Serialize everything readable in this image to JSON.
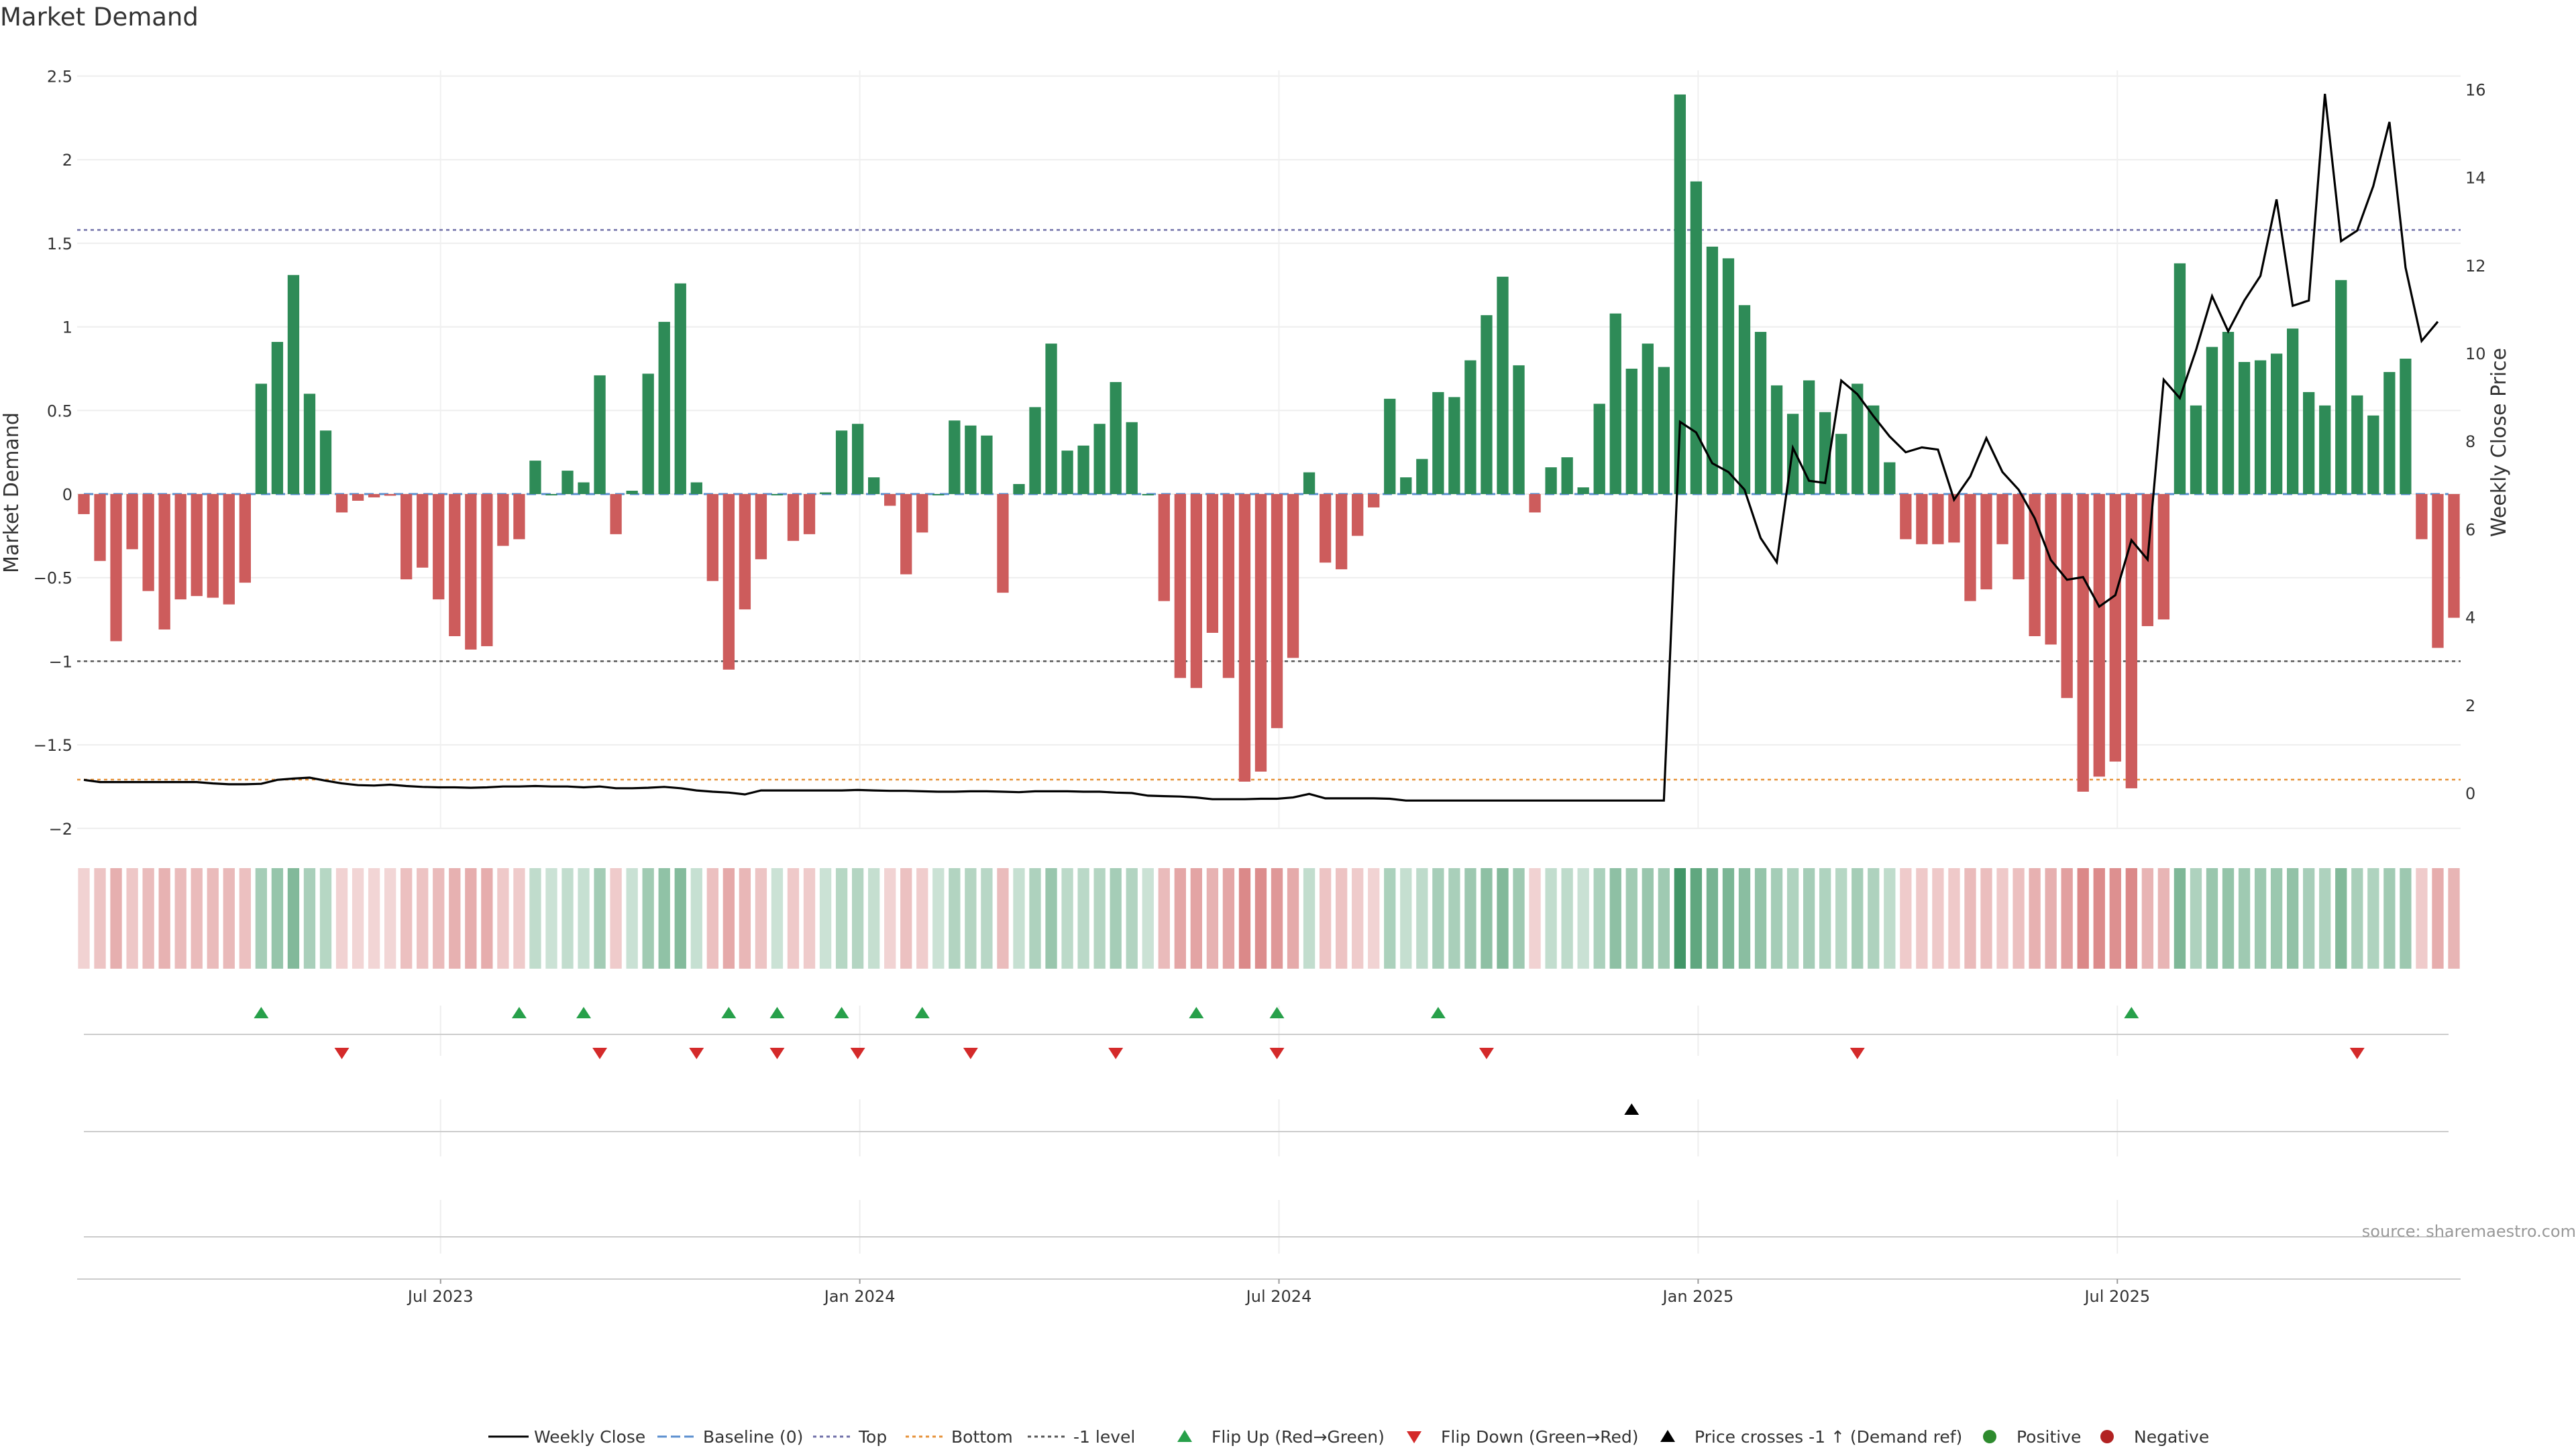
{
  "chart_data": {
    "type": "bar",
    "title": "Market Demand",
    "ylabel": "Market Demand",
    "y2label": "Weekly Close Price",
    "ylim": [
      -2,
      2.5
    ],
    "y2lim": [
      0,
      16
    ],
    "yticks": [
      "2.5",
      "2",
      "1.5",
      "1",
      "0.5",
      "0",
      "−0.5",
      "−1",
      "−1.5",
      "−2"
    ],
    "y2ticks": [
      "16",
      "14",
      "12",
      "10",
      "8",
      "6",
      "4",
      "2",
      "0"
    ],
    "xticks": [
      "Jul 2023",
      "Jan 2024",
      "Jul 2024",
      "Jan 2025",
      "Jul 2025"
    ],
    "levels": {
      "top": 1.58,
      "bottom": -1.7,
      "minus_one": -1,
      "baseline": 0
    },
    "grid": true,
    "legend_position": "bottom-center",
    "source": "source: sharemaestro.com",
    "colors": {
      "positive": "#2e8b57",
      "negative": "#cd5c5c",
      "line": "#000000",
      "flip_up": "#27a04a",
      "flip_down": "#d42a2a",
      "top": "#6f6fa8",
      "bottom": "#e69138",
      "baseline": "#5b8fcf",
      "minus_one": "#555555"
    },
    "demand": [
      -0.12,
      -0.4,
      -0.88,
      -0.33,
      -0.58,
      -0.81,
      -0.63,
      -0.61,
      -0.62,
      -0.66,
      -0.53,
      0.66,
      0.91,
      1.31,
      0.6,
      0.38,
      -0.11,
      -0.04,
      -0.02,
      -0.01,
      -0.51,
      -0.44,
      -0.63,
      -0.85,
      -0.93,
      -0.91,
      -0.31,
      -0.27,
      0.2,
      0.0,
      0.14,
      0.07,
      0.71,
      -0.24,
      0.02,
      0.72,
      1.03,
      1.26,
      0.07,
      -0.52,
      -1.05,
      -0.69,
      -0.39,
      0.0,
      -0.28,
      -0.24,
      0.01,
      0.38,
      0.42,
      0.1,
      -0.07,
      -0.48,
      -0.23,
      0.0,
      0.44,
      0.41,
      0.35,
      -0.59,
      0.06,
      0.52,
      0.9,
      0.26,
      0.29,
      0.42,
      0.67,
      0.43,
      0.0,
      -0.64,
      -1.1,
      -1.16,
      -0.83,
      -1.1,
      -1.72,
      -1.66,
      -1.4,
      -0.98,
      0.13,
      -0.41,
      -0.45,
      -0.25,
      -0.08,
      0.57,
      0.1,
      0.21,
      0.61,
      0.58,
      0.8,
      1.07,
      1.3,
      0.77,
      -0.11,
      0.16,
      0.22,
      0.04,
      0.54,
      1.08,
      0.75,
      0.9,
      0.76,
      2.39,
      1.87,
      1.48,
      1.41,
      1.13,
      0.97,
      0.65,
      0.48,
      0.68,
      0.49,
      0.36,
      0.66,
      0.53,
      0.19,
      -0.27,
      -0.3,
      -0.3,
      -0.29,
      -0.64,
      -0.57,
      -0.3,
      -0.51,
      -0.85,
      -0.9,
      -1.22,
      -1.78,
      -1.69,
      -1.6,
      -1.76,
      -0.79,
      -0.75,
      1.38,
      0.53,
      0.88,
      0.97,
      0.79,
      0.8,
      0.84,
      0.99,
      0.61,
      0.53,
      1.28,
      0.59,
      0.47,
      0.73,
      0.81,
      -0.27,
      -0.92,
      -0.74
    ],
    "close": [
      0.3,
      0.25,
      0.25,
      0.25,
      0.25,
      0.25,
      0.25,
      0.25,
      0.22,
      0.2,
      0.2,
      0.21,
      0.3,
      0.33,
      0.35,
      0.28,
      0.22,
      0.18,
      0.17,
      0.19,
      0.16,
      0.14,
      0.13,
      0.13,
      0.12,
      0.13,
      0.15,
      0.15,
      0.16,
      0.15,
      0.15,
      0.13,
      0.15,
      0.11,
      0.11,
      0.12,
      0.14,
      0.11,
      0.06,
      0.03,
      0.01,
      -0.03,
      0.06,
      0.06,
      0.06,
      0.06,
      0.06,
      0.06,
      0.07,
      0.06,
      0.05,
      0.05,
      0.04,
      0.03,
      0.03,
      0.04,
      0.04,
      0.03,
      0.02,
      0.04,
      0.04,
      0.04,
      0.03,
      0.03,
      0.01,
      0.0,
      -0.06,
      -0.07,
      -0.08,
      -0.1,
      -0.14,
      -0.14,
      -0.14,
      -0.13,
      -0.13,
      -0.1,
      -0.02,
      -0.12,
      -0.12,
      -0.12,
      -0.12,
      -0.13,
      -0.17,
      -0.17,
      -0.17,
      -0.17,
      -0.17,
      -0.17,
      -0.17,
      -0.17,
      -0.17,
      -0.17,
      -0.17,
      -0.17,
      -0.17,
      -0.17,
      -0.17,
      -0.17,
      -0.17,
      8.44,
      8.2,
      7.5,
      7.3,
      6.9,
      5.8,
      5.25,
      7.85,
      7.1,
      7.05,
      9.38,
      9.07,
      8.57,
      8.11,
      7.75,
      7.86,
      7.81,
      6.67,
      7.2,
      8.07,
      7.3,
      6.9,
      6.25,
      5.3,
      4.85,
      4.91,
      4.24,
      4.5,
      5.75,
      5.31,
      9.4,
      8.98,
      10.07,
      11.3,
      10.5,
      11.2,
      11.76,
      13.5,
      11.08,
      11.2,
      15.9,
      12.55,
      12.79,
      13.8,
      15.26,
      11.95,
      10.28,
      10.72
    ],
    "flip_up": [
      11,
      27,
      31,
      40,
      43,
      47,
      52,
      69,
      74,
      84,
      127
    ],
    "flip_down": [
      16,
      32,
      38,
      43,
      48,
      55,
      64,
      74,
      87,
      110,
      141
    ],
    "price_cross": [
      96
    ],
    "x_ticks_index": [
      22,
      48,
      74,
      100,
      126
    ],
    "legend": [
      "Weekly Close",
      "Baseline (0)",
      "Top",
      "Bottom",
      "-1 level",
      "Flip Up (Red→Green)",
      "Flip Down (Green→Red)",
      "Price crosses -1 ↑ (Demand ref)",
      "Positive",
      "Negative"
    ]
  }
}
